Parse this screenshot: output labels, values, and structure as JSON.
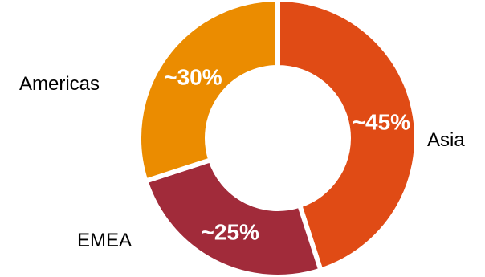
{
  "chart_data": {
    "type": "pie",
    "variant": "donut",
    "categories": [
      "Asia",
      "EMEA",
      "Americas"
    ],
    "values": [
      45,
      25,
      30
    ],
    "value_labels": [
      "~45%",
      "~25%",
      "~30%"
    ],
    "colors": [
      "#E04B15",
      "#A12B3A",
      "#EB8C00"
    ],
    "title": "",
    "legend": "none"
  }
}
